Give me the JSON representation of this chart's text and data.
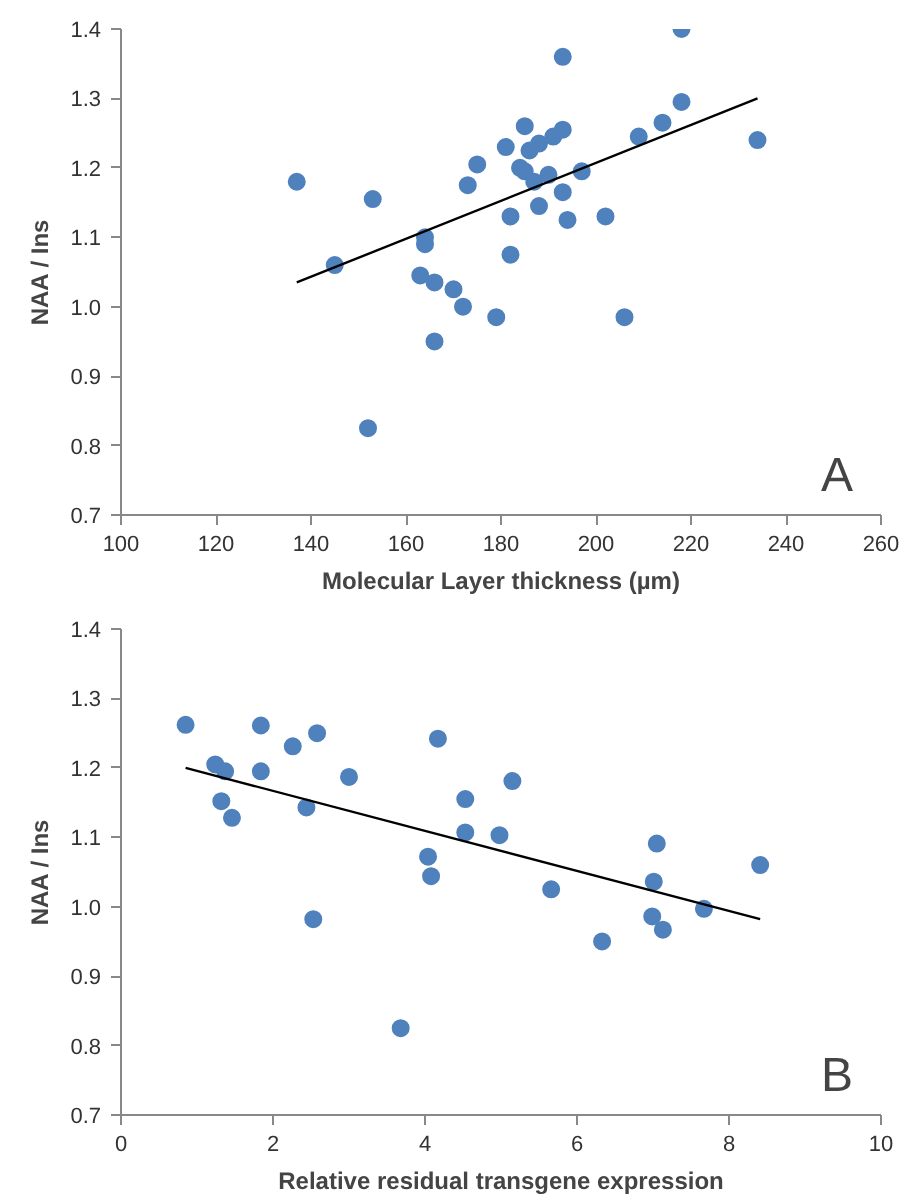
{
  "chart_data": [
    {
      "type": "scatter",
      "xlabel": "Molecular Layer thickness (µm)",
      "ylabel": "NAA / Ins",
      "annotations": [
        "A"
      ],
      "grid": false,
      "xlim": [
        100,
        260
      ],
      "xticks": [
        100,
        120,
        140,
        160,
        180,
        200,
        220,
        240,
        260
      ],
      "ylim": [
        0.7,
        1.4
      ],
      "yticks": [
        {
          "value": 0.7,
          "label": "0.7"
        },
        {
          "value": 0.8,
          "label": "0.8"
        },
        {
          "value": 0.9,
          "label": "0.9"
        },
        {
          "value": 1.0,
          "label": "1.0"
        },
        {
          "value": 1.1,
          "label": "1.1"
        },
        {
          "value": 1.2,
          "label": "1.2"
        },
        {
          "value": 1.3,
          "label": "1.3"
        },
        {
          "value": 1.4,
          "label": "1.4"
        }
      ],
      "series": [
        {
          "marker": "circle",
          "color": "#4f81bd",
          "x": [
            137,
            145,
            152,
            153,
            163,
            164,
            164,
            166,
            166,
            170,
            172,
            173,
            175,
            179,
            181,
            182,
            182,
            184,
            185,
            185,
            186,
            187,
            188,
            188,
            190,
            191,
            193,
            193,
            193,
            194,
            197,
            202,
            206,
            209,
            214,
            218,
            218,
            234
          ],
          "values": [
            1.18,
            1.06,
            0.825,
            1.155,
            1.045,
            1.1,
            1.09,
            1.035,
            0.95,
            1.025,
            1.0,
            1.175,
            1.205,
            0.985,
            1.23,
            1.075,
            1.13,
            1.2,
            1.26,
            1.195,
            1.225,
            1.18,
            1.145,
            1.235,
            1.19,
            1.245,
            1.255,
            1.36,
            1.165,
            1.125,
            1.195,
            1.13,
            0.985,
            1.245,
            1.265,
            1.295,
            1.4,
            1.24
          ]
        },
        {
          "type": "line",
          "marker": "none",
          "color": "#000000",
          "x": [
            137,
            234
          ],
          "values": [
            1.035,
            1.3
          ]
        }
      ]
    },
    {
      "type": "scatter",
      "xlabel": "Relative residual transgene expression",
      "ylabel": "NAA / Ins",
      "annotations": [
        "B"
      ],
      "grid": false,
      "xlim": [
        0,
        10
      ],
      "xticks": [
        0,
        2,
        4,
        6,
        8,
        10
      ],
      "ylim": [
        0.7,
        1.4
      ],
      "yticks": [
        {
          "value": 0.7,
          "label": "0.7"
        },
        {
          "value": 0.8,
          "label": "0.8"
        },
        {
          "value": 0.9,
          "label": "0.9"
        },
        {
          "value": 1.0,
          "label": "1.0"
        },
        {
          "value": 1.1,
          "label": "1.1"
        },
        {
          "value": 1.2,
          "label": "1.2"
        },
        {
          "value": 1.3,
          "label": "1.3"
        },
        {
          "value": 1.4,
          "label": "1.4"
        }
      ],
      "series": [
        {
          "marker": "circle",
          "color": "#4f81bd",
          "x": [
            0.85,
            1.24,
            1.37,
            1.32,
            1.46,
            1.84,
            1.84,
            2.26,
            2.44,
            2.58,
            2.53,
            3.0,
            3.68,
            4.04,
            4.08,
            4.17,
            4.53,
            4.53,
            4.98,
            5.15,
            5.66,
            6.33,
            6.99,
            7.01,
            7.05,
            7.13,
            7.67,
            8.41
          ],
          "values": [
            1.262,
            1.205,
            1.195,
            1.152,
            1.128,
            1.261,
            1.195,
            1.231,
            1.143,
            1.25,
            0.982,
            1.187,
            0.825,
            1.072,
            1.044,
            1.242,
            1.155,
            1.107,
            1.103,
            1.181,
            1.025,
            0.95,
            0.986,
            1.036,
            1.091,
            0.967,
            0.997,
            1.06
          ]
        },
        {
          "type": "line",
          "marker": "none",
          "color": "#000000",
          "x": [
            0.85,
            8.41
          ],
          "values": [
            1.2,
            0.982
          ]
        }
      ]
    }
  ]
}
